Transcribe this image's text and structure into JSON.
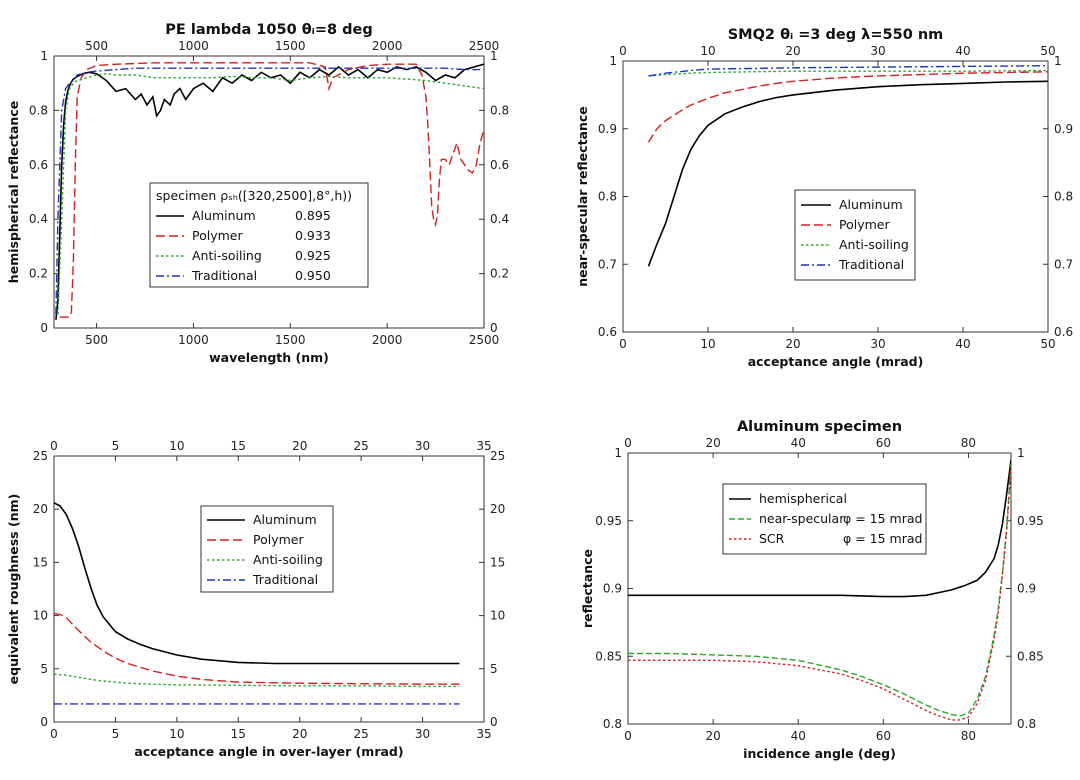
{
  "chart_data": [
    {
      "type": "line",
      "title": "PE lambda 1050 θᵢ=8 deg",
      "xlabel": "wavelength (nm)",
      "ylabel": "hemispherical reflectance",
      "xlim": [
        280,
        2500
      ],
      "ylim": [
        0,
        1
      ],
      "xticks": [
        500,
        1000,
        1500,
        2000,
        2500
      ],
      "yticks": [
        0,
        0.2,
        0.4,
        0.6,
        0.8,
        1
      ],
      "mirror_axes": true,
      "grid": false,
      "legend": {
        "placement": "center",
        "header": "specimen ρₛₕ([320,2500],8°,h))",
        "values": [
          "0.895",
          "0.933",
          "0.925",
          "0.950"
        ]
      },
      "series": [
        {
          "name": "Aluminum",
          "color": "#000000",
          "dash": "solid",
          "x": [
            290,
            300,
            310,
            320,
            330,
            340,
            350,
            360,
            370,
            380,
            400,
            430,
            460,
            500,
            550,
            600,
            650,
            700,
            730,
            760,
            790,
            810,
            830,
            850,
            880,
            900,
            930,
            960,
            1000,
            1050,
            1100,
            1150,
            1200,
            1250,
            1300,
            1350,
            1400,
            1450,
            1500,
            1550,
            1600,
            1650,
            1700,
            1750,
            1800,
            1850,
            1900,
            1950,
            2000,
            2050,
            2100,
            2150,
            2200,
            2250,
            2300,
            2350,
            2400,
            2450,
            2500
          ],
          "y": [
            0.03,
            0.1,
            0.35,
            0.6,
            0.75,
            0.83,
            0.87,
            0.89,
            0.905,
            0.915,
            0.925,
            0.935,
            0.94,
            0.935,
            0.91,
            0.87,
            0.88,
            0.84,
            0.86,
            0.82,
            0.85,
            0.78,
            0.8,
            0.84,
            0.82,
            0.86,
            0.88,
            0.84,
            0.88,
            0.9,
            0.87,
            0.92,
            0.9,
            0.93,
            0.91,
            0.94,
            0.92,
            0.93,
            0.9,
            0.94,
            0.92,
            0.95,
            0.93,
            0.96,
            0.93,
            0.95,
            0.92,
            0.95,
            0.94,
            0.96,
            0.95,
            0.96,
            0.94,
            0.91,
            0.93,
            0.92,
            0.95,
            0.96,
            0.97
          ]
        },
        {
          "name": "Polymer",
          "color": "#d42020",
          "dash": "long",
          "x": [
            310,
            320,
            330,
            340,
            350,
            360,
            370,
            380,
            390,
            400,
            420,
            450,
            500,
            600,
            800,
            1000,
            1200,
            1400,
            1600,
            1680,
            1700,
            1720,
            1800,
            1900,
            2000,
            2100,
            2150,
            2180,
            2200,
            2210,
            2220,
            2230,
            2240,
            2250,
            2260,
            2270,
            2280,
            2300,
            2320,
            2340,
            2360,
            2380,
            2400,
            2420,
            2440,
            2460,
            2480,
            2500
          ],
          "y": [
            0.04,
            0.04,
            0.04,
            0.04,
            0.04,
            0.04,
            0.06,
            0.25,
            0.6,
            0.85,
            0.92,
            0.95,
            0.965,
            0.97,
            0.975,
            0.975,
            0.975,
            0.975,
            0.975,
            0.96,
            0.88,
            0.92,
            0.95,
            0.965,
            0.97,
            0.97,
            0.97,
            0.93,
            0.85,
            0.75,
            0.6,
            0.45,
            0.4,
            0.38,
            0.42,
            0.55,
            0.62,
            0.62,
            0.6,
            0.64,
            0.68,
            0.62,
            0.6,
            0.58,
            0.57,
            0.6,
            0.68,
            0.73
          ]
        },
        {
          "name": "Anti-soiling",
          "color": "#2aa82a",
          "dash": "dot",
          "x": [
            300,
            320,
            340,
            360,
            380,
            400,
            450,
            500,
            550,
            600,
            700,
            800,
            900,
            1000,
            1100,
            1200,
            1300,
            1400,
            1500,
            1600,
            1700,
            1800,
            1900,
            2000,
            2100,
            2200,
            2300,
            2400,
            2500
          ],
          "y": [
            0.05,
            0.4,
            0.8,
            0.88,
            0.9,
            0.91,
            0.92,
            0.93,
            0.935,
            0.93,
            0.93,
            0.92,
            0.92,
            0.92,
            0.92,
            0.925,
            0.92,
            0.92,
            0.91,
            0.92,
            0.925,
            0.92,
            0.92,
            0.92,
            0.915,
            0.91,
            0.9,
            0.89,
            0.88
          ]
        },
        {
          "name": "Traditional",
          "color": "#2030c0",
          "dash": "dashdot",
          "x": [
            290,
            300,
            320,
            340,
            360,
            380,
            400,
            450,
            500,
            600,
            700,
            800,
            900,
            1000,
            1200,
            1400,
            1600,
            1800,
            2000,
            2200,
            2300,
            2400,
            2500
          ],
          "y": [
            0.05,
            0.4,
            0.8,
            0.88,
            0.9,
            0.91,
            0.93,
            0.94,
            0.945,
            0.95,
            0.955,
            0.955,
            0.955,
            0.955,
            0.955,
            0.955,
            0.955,
            0.955,
            0.955,
            0.955,
            0.955,
            0.95,
            0.95
          ]
        }
      ]
    },
    {
      "type": "line",
      "title": "SMQ2 θᵢ =3 deg λ=550 nm",
      "xlabel": "acceptance angle (mrad)",
      "ylabel": "near-specular reflectance",
      "xlim": [
        0,
        50
      ],
      "ylim": [
        0.6,
        1
      ],
      "xticks": [
        0,
        10,
        20,
        30,
        40,
        50
      ],
      "yticks": [
        0.6,
        0.7,
        0.8,
        0.9,
        1
      ],
      "mirror_axes": true,
      "grid": false,
      "legend": {
        "placement": "center-right"
      },
      "series": [
        {
          "name": "Aluminum",
          "color": "#000000",
          "dash": "solid",
          "x": [
            3,
            4,
            5,
            6,
            7,
            8,
            9,
            10,
            12,
            14,
            16,
            18,
            20,
            25,
            30,
            35,
            40,
            45,
            50
          ],
          "y": [
            0.697,
            0.73,
            0.76,
            0.8,
            0.84,
            0.87,
            0.89,
            0.905,
            0.922,
            0.932,
            0.94,
            0.946,
            0.95,
            0.957,
            0.962,
            0.965,
            0.967,
            0.969,
            0.97
          ]
        },
        {
          "name": "Polymer",
          "color": "#d42020",
          "dash": "long",
          "x": [
            3,
            4,
            5,
            6,
            7,
            8,
            10,
            12,
            14,
            16,
            18,
            20,
            25,
            30,
            35,
            40,
            45,
            50
          ],
          "y": [
            0.88,
            0.9,
            0.912,
            0.92,
            0.928,
            0.935,
            0.945,
            0.953,
            0.958,
            0.963,
            0.967,
            0.97,
            0.975,
            0.978,
            0.98,
            0.982,
            0.983,
            0.984
          ]
        },
        {
          "name": "Anti-soiling",
          "color": "#2aa82a",
          "dash": "dot",
          "x": [
            3,
            5,
            8,
            10,
            15,
            20,
            30,
            40,
            50
          ],
          "y": [
            0.978,
            0.98,
            0.982,
            0.983,
            0.984,
            0.985,
            0.985,
            0.985,
            0.986
          ]
        },
        {
          "name": "Traditional",
          "color": "#2030c0",
          "dash": "dashdot",
          "x": [
            3,
            5,
            8,
            10,
            15,
            20,
            30,
            40,
            50
          ],
          "y": [
            0.978,
            0.982,
            0.986,
            0.988,
            0.989,
            0.99,
            0.991,
            0.992,
            0.993
          ]
        }
      ]
    },
    {
      "type": "line",
      "title": "",
      "xlabel": "acceptance angle in over-layer (mrad)",
      "ylabel": "equivalent roughness (nm)",
      "xlim": [
        0,
        35
      ],
      "ylim": [
        0,
        25
      ],
      "xticks": [
        0,
        5,
        10,
        15,
        20,
        25,
        30,
        35
      ],
      "yticks": [
        0,
        5,
        10,
        15,
        20,
        25
      ],
      "mirror_axes": true,
      "grid": false,
      "legend": {
        "placement": "center-right"
      },
      "series": [
        {
          "name": "Aluminum",
          "color": "#000000",
          "dash": "solid",
          "x": [
            0,
            0.5,
            1,
            1.5,
            2,
            2.5,
            3,
            3.5,
            4,
            5,
            6,
            7,
            8,
            10,
            12,
            15,
            18,
            20,
            25,
            30,
            33
          ],
          "y": [
            20.6,
            20.3,
            19.5,
            18.2,
            16.5,
            14.5,
            12.6,
            11.0,
            9.9,
            8.5,
            7.8,
            7.3,
            6.9,
            6.3,
            5.9,
            5.6,
            5.5,
            5.5,
            5.5,
            5.5,
            5.5
          ]
        },
        {
          "name": "Polymer",
          "color": "#d42020",
          "dash": "long",
          "x": [
            0,
            0.5,
            1,
            1.5,
            2,
            3,
            4,
            5,
            6,
            8,
            10,
            12,
            15,
            20,
            25,
            30,
            33
          ],
          "y": [
            10.2,
            10.1,
            9.8,
            9.2,
            8.6,
            7.5,
            6.7,
            6.0,
            5.5,
            4.8,
            4.3,
            4.0,
            3.75,
            3.65,
            3.6,
            3.55,
            3.55
          ]
        },
        {
          "name": "Anti-soiling",
          "color": "#2aa82a",
          "dash": "dot",
          "x": [
            0,
            1,
            2,
            3,
            4,
            5,
            6,
            8,
            10,
            15,
            20,
            25,
            30,
            33
          ],
          "y": [
            4.5,
            4.4,
            4.2,
            4.0,
            3.85,
            3.75,
            3.65,
            3.55,
            3.5,
            3.45,
            3.4,
            3.4,
            3.35,
            3.35
          ]
        },
        {
          "name": "Traditional",
          "color": "#2030c0",
          "dash": "dashdot",
          "x": [
            0,
            33
          ],
          "y": [
            1.7,
            1.7
          ]
        }
      ]
    },
    {
      "type": "line",
      "title": "Aluminum specimen",
      "xlabel": "incidence angle (deg)",
      "ylabel": "reflectance",
      "xlim": [
        0,
        90
      ],
      "ylim": [
        0.8,
        1
      ],
      "xticks": [
        0,
        20,
        40,
        60,
        80
      ],
      "yticks": [
        0.8,
        0.85,
        0.9,
        0.95,
        1
      ],
      "mirror_axes": true,
      "grid": false,
      "legend": {
        "placement": "top-center",
        "extra": [
          "",
          "φ = 15 mrad",
          "φ = 15 mrad"
        ]
      },
      "series": [
        {
          "name": "hemispherical",
          "color": "#000000",
          "dash": "solid",
          "x": [
            0,
            10,
            20,
            30,
            40,
            50,
            60,
            65,
            70,
            73,
            76,
            79,
            82,
            84,
            86,
            87,
            88,
            89,
            90
          ],
          "y": [
            0.895,
            0.895,
            0.895,
            0.895,
            0.895,
            0.895,
            0.894,
            0.894,
            0.895,
            0.897,
            0.899,
            0.902,
            0.906,
            0.912,
            0.922,
            0.932,
            0.948,
            0.97,
            0.995
          ]
        },
        {
          "name": "near-specular",
          "color": "#2aa82a",
          "dash": "dash",
          "x": [
            0,
            10,
            20,
            30,
            40,
            50,
            55,
            60,
            65,
            70,
            73,
            76,
            78,
            80,
            82,
            84,
            86,
            87,
            88,
            89,
            90
          ],
          "y": [
            0.852,
            0.852,
            0.851,
            0.85,
            0.847,
            0.84,
            0.835,
            0.829,
            0.822,
            0.814,
            0.81,
            0.807,
            0.806,
            0.808,
            0.818,
            0.835,
            0.865,
            0.885,
            0.912,
            0.945,
            0.992
          ]
        },
        {
          "name": "SCR",
          "color": "#d42020",
          "dash": "dot",
          "x": [
            0,
            10,
            20,
            30,
            40,
            50,
            55,
            60,
            65,
            70,
            73,
            76,
            78,
            80,
            82,
            84,
            86,
            87,
            88,
            89,
            90
          ],
          "y": [
            0.847,
            0.847,
            0.847,
            0.846,
            0.843,
            0.837,
            0.832,
            0.826,
            0.818,
            0.81,
            0.806,
            0.803,
            0.803,
            0.805,
            0.815,
            0.832,
            0.862,
            0.882,
            0.91,
            0.943,
            0.99
          ]
        }
      ]
    }
  ]
}
